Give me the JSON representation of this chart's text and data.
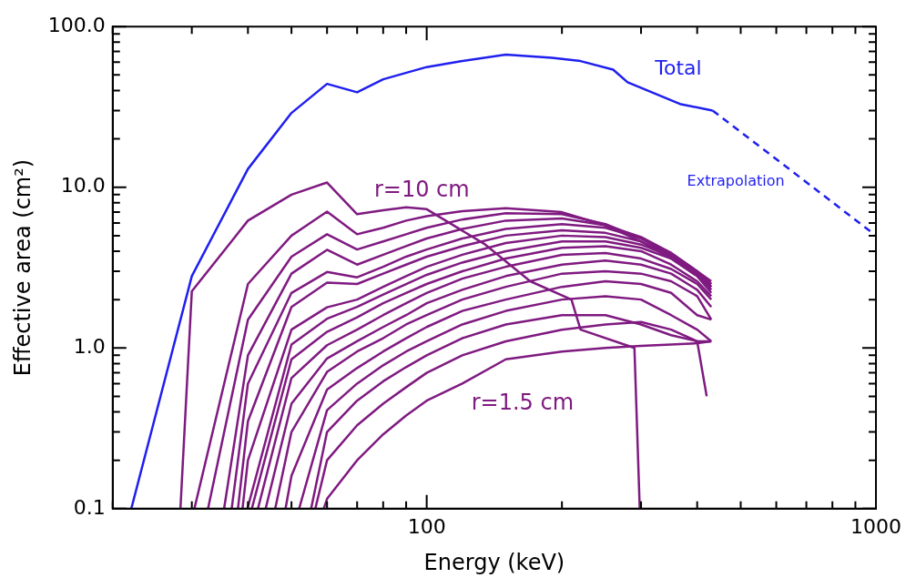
{
  "chart_data": {
    "type": "line",
    "xlabel": "Energy (keV)",
    "ylabel": "Effective area (cm²)",
    "log": "xy",
    "xlim": [
      20,
      1000
    ],
    "ylim": [
      0.1,
      100
    ],
    "xticks": [
      {
        "value": 20,
        "label": null
      },
      {
        "value": 30,
        "label": null
      },
      {
        "value": 40,
        "label": null
      },
      {
        "value": 50,
        "label": null
      },
      {
        "value": 60,
        "label": null
      },
      {
        "value": 70,
        "label": null
      },
      {
        "value": 80,
        "label": null
      },
      {
        "value": 90,
        "label": null
      },
      100,
      {
        "value": 200,
        "label": null
      },
      {
        "value": 300,
        "label": null
      },
      {
        "value": 400,
        "label": null
      },
      {
        "value": 500,
        "label": null
      },
      {
        "value": 600,
        "label": null
      },
      {
        "value": 700,
        "label": null
      },
      {
        "value": 800,
        "label": null
      },
      {
        "value": 900,
        "label": null
      },
      1000
    ],
    "yticks": [
      {
        "value": 0.1,
        "label": "0.1"
      },
      {
        "value": 0.2,
        "label": null
      },
      {
        "value": 0.3,
        "label": null
      },
      {
        "value": 0.4,
        "label": null
      },
      {
        "value": 0.5,
        "label": null
      },
      {
        "value": 0.6,
        "label": null
      },
      {
        "value": 0.7,
        "label": null
      },
      {
        "value": 0.8,
        "label": null
      },
      {
        "value": 0.9,
        "label": null
      },
      {
        "value": 1,
        "label": "1.0"
      },
      {
        "value": 2,
        "label": null
      },
      {
        "value": 3,
        "label": null
      },
      {
        "value": 4,
        "label": null
      },
      {
        "value": 5,
        "label": null
      },
      {
        "value": 6,
        "label": null
      },
      {
        "value": 7,
        "label": null
      },
      {
        "value": 8,
        "label": null
      },
      {
        "value": 9,
        "label": null
      },
      {
        "value": 10,
        "label": "10.0"
      },
      {
        "value": 20,
        "label": null
      },
      {
        "value": 30,
        "label": null
      },
      {
        "value": 40,
        "label": null
      },
      {
        "value": 50,
        "label": null
      },
      {
        "value": 60,
        "label": null
      },
      {
        "value": 70,
        "label": null
      },
      {
        "value": 80,
        "label": null
      },
      {
        "value": 90,
        "label": null
      },
      {
        "value": 100,
        "label": "100.0"
      }
    ],
    "series": [
      {
        "name": "Total",
        "color": "#1f1fef",
        "line_style": "solid",
        "x": [
          22,
          30,
          40,
          50,
          60,
          70,
          80,
          100,
          120,
          150,
          190,
          220,
          260,
          280,
          366,
          433
        ],
        "values": [
          0.1,
          2.8,
          13,
          29,
          44,
          39,
          47,
          56,
          61,
          67,
          64,
          61,
          54,
          45,
          33,
          30
        ]
      },
      {
        "name": "Extrapolation",
        "color": "#1f1fef",
        "line_style": "dashed",
        "x": [
          433,
          650,
          1000
        ],
        "values": [
          30,
          12.6,
          5
        ]
      },
      {
        "color": "#7f1a80",
        "x": [
          28.3,
          30,
          40,
          50,
          60,
          70,
          80,
          90,
          100,
          135,
          170,
          210,
          220,
          290,
          298
        ],
        "values": [
          0.1,
          2.25,
          6.2,
          9.0,
          10.7,
          6.8,
          7.2,
          7.5,
          7.3,
          4.4,
          2.6,
          2.0,
          1.3,
          1.0,
          0.1
        ]
      },
      {
        "color": "#7f1a80",
        "x": [
          30.4,
          40,
          50,
          60,
          70,
          80,
          90,
          100,
          120,
          150,
          200,
          250,
          300,
          350,
          400,
          430
        ],
        "values": [
          0.1,
          2.5,
          5.0,
          7.05,
          5.1,
          5.6,
          6.2,
          6.6,
          7.1,
          7.4,
          7.0,
          5.8,
          4.6,
          3.6,
          2.8,
          2.5
        ]
      },
      {
        "color": "#7f1a80",
        "x": [
          32.6,
          40,
          50,
          60,
          70,
          80,
          90,
          100,
          120,
          150,
          200,
          250,
          300,
          350,
          400,
          430
        ],
        "values": [
          0.1,
          1.5,
          3.7,
          5.1,
          4.1,
          4.6,
          5.1,
          5.6,
          6.3,
          6.9,
          6.8,
          5.9,
          4.8,
          3.8,
          2.9,
          2.4
        ]
      },
      {
        "color": "#7f1a80",
        "x": [
          35.4,
          40,
          50,
          60,
          70,
          80,
          90,
          100,
          120,
          150,
          200,
          250,
          300,
          350,
          400,
          430
        ],
        "values": [
          0.1,
          0.9,
          2.9,
          4.08,
          3.3,
          3.8,
          4.3,
          4.8,
          5.5,
          6.2,
          6.4,
          5.8,
          4.9,
          3.9,
          3.0,
          2.6
        ]
      },
      {
        "color": "#7f1a80",
        "x": [
          36.8,
          40,
          50,
          60,
          70,
          80,
          90,
          100,
          120,
          150,
          200,
          250,
          300,
          350,
          400,
          430
        ],
        "values": [
          0.1,
          0.6,
          2.2,
          2.97,
          2.75,
          3.2,
          3.7,
          4.1,
          4.8,
          5.5,
          5.9,
          5.6,
          4.8,
          3.9,
          3.0,
          2.5
        ]
      },
      {
        "color": "#7f1a80",
        "x": [
          38,
          40,
          50,
          60,
          70,
          80,
          90,
          100,
          120,
          150,
          200,
          250,
          300,
          350,
          400,
          430
        ],
        "values": [
          0.1,
          0.35,
          1.8,
          2.55,
          2.5,
          2.9,
          3.3,
          3.7,
          4.3,
          5.0,
          5.4,
          5.2,
          4.6,
          3.8,
          3.0,
          2.4
        ]
      },
      {
        "color": "#7f1a80",
        "x": [
          38.9,
          40,
          50,
          60,
          70,
          80,
          90,
          100,
          120,
          150,
          200,
          250,
          300,
          350,
          400,
          430
        ],
        "values": [
          0.1,
          0.2,
          1.3,
          1.79,
          2.0,
          2.4,
          2.8,
          3.2,
          3.8,
          4.5,
          5.0,
          4.9,
          4.4,
          3.7,
          2.9,
          2.3
        ]
      },
      {
        "color": "#7f1a80",
        "x": [
          39.9,
          50,
          60,
          70,
          80,
          90,
          100,
          120,
          150,
          200,
          250,
          300,
          350,
          400,
          430
        ],
        "values": [
          0.1,
          1.05,
          1.52,
          1.8,
          2.15,
          2.5,
          2.85,
          3.4,
          4.0,
          4.6,
          4.6,
          4.2,
          3.6,
          2.8,
          2.2
        ]
      },
      {
        "color": "#7f1a80",
        "x": [
          40.8,
          50,
          60,
          70,
          80,
          90,
          100,
          120,
          150,
          200,
          250,
          300,
          350,
          400,
          430
        ],
        "values": [
          0.1,
          0.85,
          1.26,
          1.55,
          1.9,
          2.2,
          2.5,
          3.0,
          3.6,
          4.2,
          4.3,
          4.0,
          3.3,
          2.6,
          2.1
        ]
      },
      {
        "color": "#7f1a80",
        "x": [
          42.1,
          50,
          60,
          70,
          80,
          90,
          100,
          120,
          150,
          200,
          250,
          300,
          350,
          400,
          430
        ],
        "values": [
          0.1,
          0.65,
          1.04,
          1.3,
          1.6,
          1.9,
          2.2,
          2.7,
          3.2,
          3.8,
          3.9,
          3.6,
          3.1,
          2.5,
          2.0
        ]
      },
      {
        "color": "#7f1a80",
        "x": [
          43.8,
          50,
          60,
          70,
          80,
          90,
          100,
          120,
          150,
          200,
          250,
          300,
          350,
          400,
          430
        ],
        "values": [
          0.1,
          0.45,
          0.86,
          1.1,
          1.35,
          1.6,
          1.9,
          2.3,
          2.8,
          3.3,
          3.5,
          3.3,
          2.9,
          2.3,
          1.8
        ]
      },
      {
        "color": "#7f1a80",
        "x": [
          46,
          50,
          60,
          70,
          80,
          90,
          100,
          120,
          150,
          200,
          250,
          300,
          350,
          400,
          430
        ],
        "values": [
          0.1,
          0.3,
          0.71,
          0.95,
          1.15,
          1.4,
          1.6,
          2.0,
          2.4,
          2.9,
          3.0,
          2.9,
          2.6,
          2.1,
          1.5
        ]
      },
      {
        "color": "#7f1a80",
        "x": [
          48.5,
          50,
          60,
          70,
          80,
          90,
          100,
          120,
          150,
          200,
          250,
          300,
          350,
          400,
          430
        ],
        "values": [
          0.1,
          0.16,
          0.55,
          0.75,
          0.95,
          1.15,
          1.35,
          1.7,
          2.0,
          2.4,
          2.6,
          2.5,
          2.2,
          1.6,
          1.5
        ]
      },
      {
        "color": "#7f1a80",
        "x": [
          52,
          60,
          70,
          80,
          90,
          100,
          120,
          150,
          200,
          250,
          300,
          350,
          400,
          430
        ],
        "values": [
          0.1,
          0.41,
          0.6,
          0.78,
          0.95,
          1.1,
          1.4,
          1.7,
          2.0,
          2.1,
          2.0,
          1.6,
          1.3,
          1.1
        ]
      },
      {
        "color": "#7f1a80",
        "x": [
          55.3,
          60,
          70,
          80,
          90,
          100,
          120,
          150,
          200,
          250,
          300,
          350,
          400,
          420
        ],
        "values": [
          0.1,
          0.3,
          0.47,
          0.62,
          0.76,
          0.9,
          1.15,
          1.4,
          1.6,
          1.6,
          1.4,
          1.2,
          1.1,
          0.5
        ]
      },
      {
        "color": "#7f1a80",
        "x": [
          56.5,
          60,
          70,
          80,
          90,
          100,
          120,
          150,
          200,
          250,
          300,
          350,
          400,
          430
        ],
        "values": [
          0.1,
          0.2,
          0.33,
          0.45,
          0.57,
          0.7,
          0.9,
          1.1,
          1.3,
          1.4,
          1.45,
          1.3,
          1.1,
          1.1
        ]
      },
      {
        "color": "#7f1a80",
        "x": [
          59,
          60,
          70,
          80,
          90,
          100,
          120,
          150,
          200,
          250,
          300,
          350,
          400,
          430
        ],
        "values": [
          0.1,
          0.115,
          0.2,
          0.29,
          0.38,
          0.47,
          0.6,
          0.85,
          0.95,
          1.0,
          1.03,
          1.05,
          1.07,
          1.1
        ]
      }
    ],
    "annotations": [
      "r=10 cm",
      "r=1.5 cm"
    ]
  }
}
